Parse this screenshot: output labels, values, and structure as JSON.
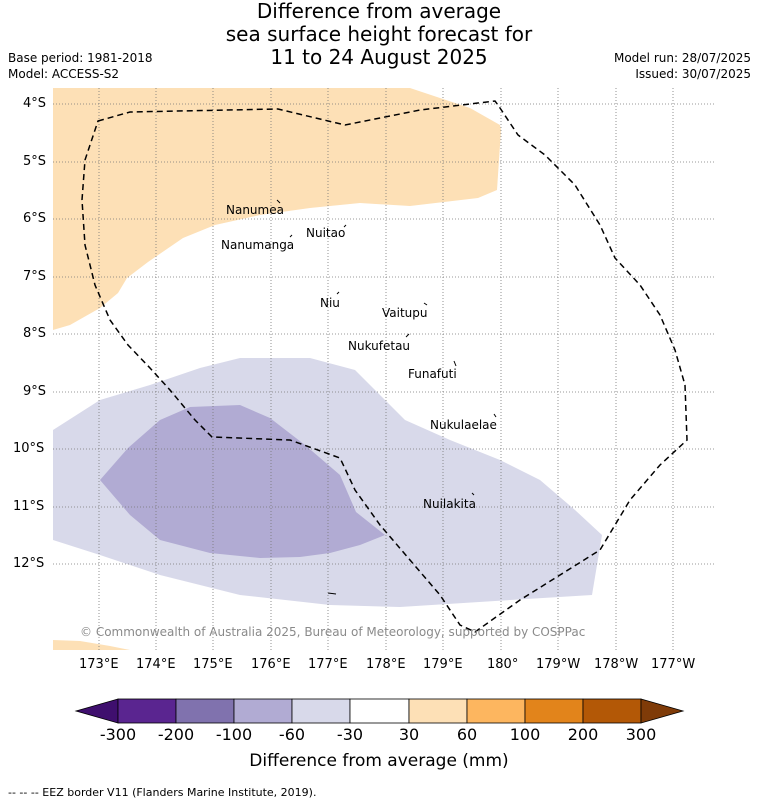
{
  "title": {
    "line1": "Difference from average",
    "line2": "sea surface height forecast for",
    "line3": "11 to 24 August 2025"
  },
  "meta": {
    "base_period": "Base period: 1981-2018",
    "model": "Model: ACCESS-S2",
    "model_run": "Model run: 28/07/2025",
    "issued": "Issued: 30/07/2025"
  },
  "map": {
    "lat_labels": [
      "4°S",
      "5°S",
      "6°S",
      "7°S",
      "8°S",
      "9°S",
      "10°S",
      "11°S",
      "12°S"
    ],
    "lon_labels": [
      "173°E",
      "174°E",
      "175°E",
      "176°E",
      "177°E",
      "178°E",
      "179°E",
      "180°",
      "179°W",
      "178°W",
      "177°W"
    ],
    "islands": [
      "Nanumea",
      "Nanumanga",
      "Nuitao",
      "Niu",
      "Vaitupu",
      "Nukufetau",
      "Funafuti",
      "Nukulaelae",
      "Nuilakita"
    ],
    "copyright": "© Commonwealth of Australia 2025, Bureau of Meteorology, supported by COSPPac",
    "colors": {
      "pos_30_60": "#fde0b6",
      "neg_30_60": "#d8d9ea",
      "neg_60_100": "#b1abd3",
      "eez": "#000000",
      "grid": "#777777"
    }
  },
  "colorbar": {
    "ticks": [
      "-300",
      "-200",
      "-100",
      "-60",
      "-30",
      "30",
      "60",
      "100",
      "200",
      "300"
    ],
    "colors": [
      "#3f0f6e",
      "#5a2590",
      "#8072ae",
      "#b1abd3",
      "#d8d9ea",
      "#ffffff",
      "#fde0b6",
      "#fdb65f",
      "#e2841b",
      "#b35806",
      "#7f3b08"
    ],
    "title": "Difference from average (mm)"
  },
  "footer": "--  --  -- EEZ border V11 (Flanders Marine Institute, 2019)."
}
